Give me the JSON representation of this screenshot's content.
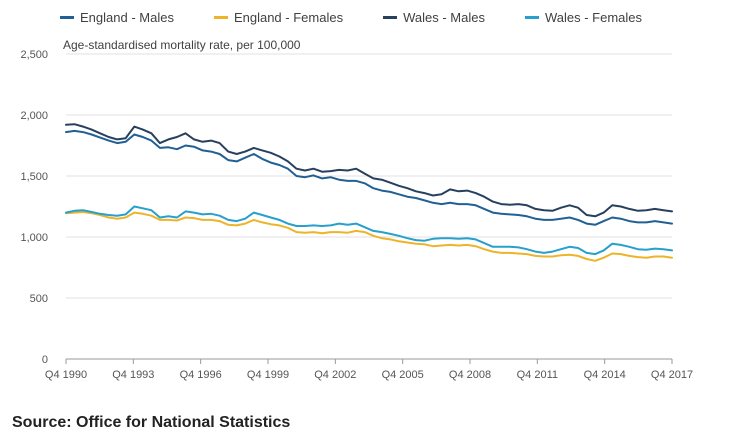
{
  "source": "Source: Office for National Statistics",
  "chart_data": {
    "type": "line",
    "ylabel": "Age-standardised mortality rate, per 100,000",
    "ylim": [
      0,
      2500
    ],
    "y_ticks": [
      "0",
      "500",
      "1,000",
      "1,500",
      "2,000",
      "2,500"
    ],
    "x_ticks": [
      "Q4 1990",
      "Q4 1993",
      "Q4 1996",
      "Q4 1999",
      "Q4 2002",
      "Q4 2005",
      "Q4 2008",
      "Q4 2011",
      "Q4 2014",
      "Q4 2017"
    ],
    "x_start": "Q4 1990",
    "x_end": "Q4 2017",
    "legend_position": "top",
    "grid": "horizontal",
    "series": [
      {
        "name": "England - Males",
        "color": "#206095",
        "values": [
          1860,
          1870,
          1860,
          1840,
          1815,
          1790,
          1770,
          1780,
          1840,
          1820,
          1790,
          1730,
          1735,
          1720,
          1750,
          1740,
          1710,
          1700,
          1680,
          1630,
          1620,
          1650,
          1680,
          1640,
          1610,
          1590,
          1560,
          1500,
          1490,
          1505,
          1480,
          1490,
          1470,
          1460,
          1460,
          1440,
          1400,
          1380,
          1370,
          1350,
          1330,
          1320,
          1300,
          1280,
          1270,
          1280,
          1270,
          1270,
          1260,
          1230,
          1200,
          1190,
          1185,
          1180,
          1170,
          1150,
          1140,
          1140,
          1150,
          1160,
          1140,
          1110,
          1100,
          1130,
          1160,
          1150,
          1130,
          1120,
          1120,
          1130,
          1120,
          1110
        ]
      },
      {
        "name": "England - Females",
        "color": "#EDB42A",
        "values": [
          1195,
          1200,
          1205,
          1195,
          1180,
          1160,
          1150,
          1160,
          1200,
          1190,
          1175,
          1140,
          1140,
          1135,
          1160,
          1155,
          1140,
          1140,
          1130,
          1100,
          1095,
          1110,
          1140,
          1120,
          1105,
          1095,
          1075,
          1040,
          1035,
          1040,
          1030,
          1040,
          1040,
          1035,
          1050,
          1040,
          1010,
          990,
          980,
          965,
          955,
          945,
          940,
          925,
          930,
          935,
          930,
          935,
          925,
          900,
          880,
          870,
          870,
          865,
          860,
          845,
          840,
          840,
          850,
          855,
          845,
          820,
          805,
          830,
          865,
          860,
          845,
          835,
          830,
          840,
          840,
          830
        ]
      },
      {
        "name": "Wales - Males",
        "color": "#27405E",
        "values": [
          1920,
          1925,
          1905,
          1880,
          1850,
          1820,
          1800,
          1810,
          1905,
          1880,
          1850,
          1770,
          1800,
          1820,
          1850,
          1800,
          1780,
          1790,
          1770,
          1700,
          1680,
          1700,
          1730,
          1710,
          1690,
          1660,
          1620,
          1560,
          1545,
          1560,
          1535,
          1540,
          1550,
          1545,
          1560,
          1520,
          1480,
          1470,
          1445,
          1420,
          1400,
          1375,
          1360,
          1340,
          1350,
          1390,
          1375,
          1380,
          1360,
          1330,
          1290,
          1270,
          1265,
          1270,
          1260,
          1230,
          1220,
          1215,
          1240,
          1260,
          1240,
          1180,
          1170,
          1200,
          1260,
          1250,
          1230,
          1215,
          1220,
          1230,
          1220,
          1210
        ]
      },
      {
        "name": "Wales - Females",
        "color": "#27A0CC",
        "values": [
          1200,
          1215,
          1220,
          1205,
          1190,
          1180,
          1175,
          1185,
          1250,
          1235,
          1220,
          1160,
          1170,
          1160,
          1210,
          1200,
          1185,
          1190,
          1175,
          1140,
          1130,
          1150,
          1200,
          1180,
          1160,
          1140,
          1110,
          1090,
          1090,
          1095,
          1090,
          1095,
          1110,
          1100,
          1110,
          1080,
          1050,
          1040,
          1025,
          1010,
          990,
          975,
          970,
          985,
          990,
          990,
          985,
          990,
          980,
          950,
          920,
          920,
          920,
          915,
          900,
          880,
          870,
          880,
          900,
          920,
          910,
          870,
          860,
          890,
          945,
          935,
          920,
          900,
          895,
          905,
          900,
          890
        ]
      }
    ]
  }
}
